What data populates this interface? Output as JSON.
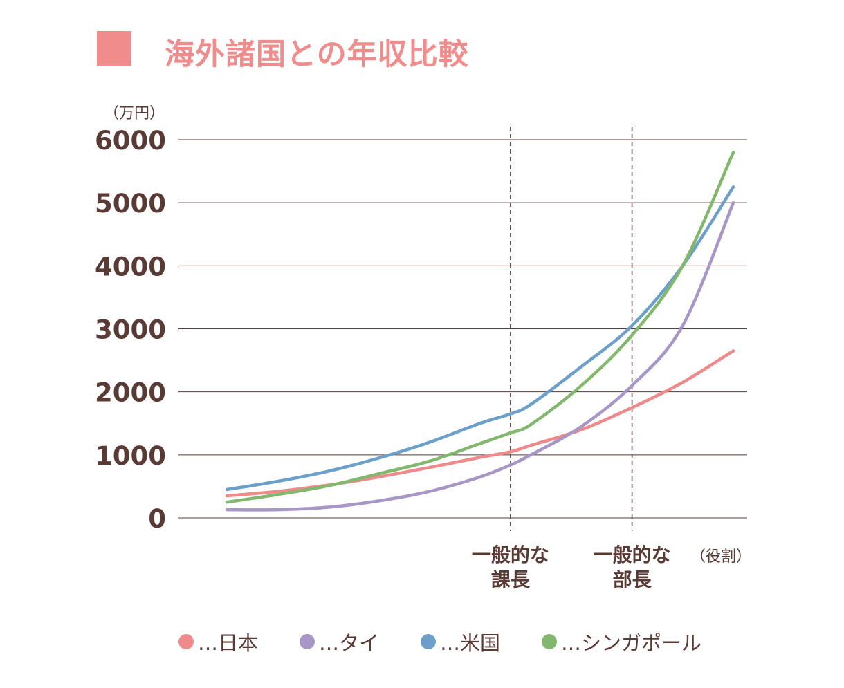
{
  "title": "海外諸国との年収比較",
  "colors": {
    "title": "#f08c8c",
    "text": "#5a3a35",
    "grid": "#5a3a35"
  },
  "chart_data": {
    "type": "line",
    "title": "海外諸国との年収比較",
    "ylabel": "（万円）",
    "xlabel": "（役割）",
    "ylim": [
      0,
      6000
    ],
    "yticks": [
      0,
      1000,
      2000,
      3000,
      4000,
      5000,
      6000
    ],
    "grid": true,
    "legend_position": "bottom",
    "markers": [
      {
        "label_line1": "一般的な",
        "label_line2": "課長",
        "x": 0.56
      },
      {
        "label_line1": "一般的な",
        "label_line2": "部長",
        "x": 0.8
      }
    ],
    "x": [
      0,
      0.1,
      0.2,
      0.3,
      0.4,
      0.5,
      0.56,
      0.6,
      0.7,
      0.8,
      0.9,
      1.0
    ],
    "series": [
      {
        "name": "日本",
        "color": "#ef8a8a",
        "values": [
          350,
          420,
          520,
          650,
          800,
          960,
          1050,
          1150,
          1400,
          1750,
          2150,
          2650
        ]
      },
      {
        "name": "タイ",
        "color": "#a796c6",
        "values": [
          130,
          130,
          170,
          270,
          420,
          650,
          840,
          1000,
          1450,
          2100,
          3050,
          5000
        ]
      },
      {
        "name": "米国",
        "color": "#6c9fca",
        "values": [
          450,
          580,
          740,
          950,
          1200,
          1500,
          1650,
          1800,
          2400,
          3050,
          4000,
          5250
        ]
      },
      {
        "name": "シンガポール",
        "color": "#82b86e",
        "values": [
          250,
          370,
          510,
          700,
          900,
          1180,
          1350,
          1480,
          2100,
          2900,
          4000,
          5800
        ]
      }
    ]
  }
}
